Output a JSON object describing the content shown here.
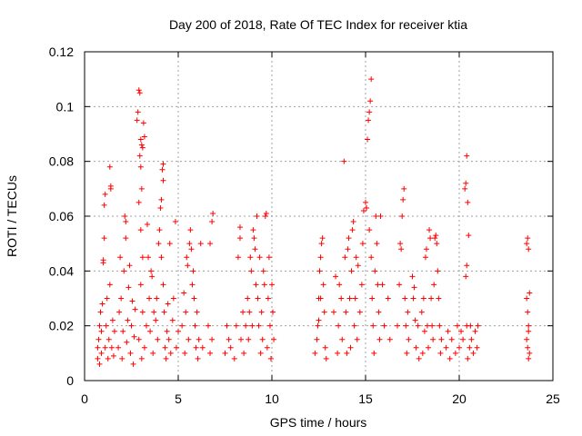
{
  "chart_data": {
    "type": "scatter",
    "title": "Day 200 of 2018, Rate Of TEC Index for receiver ktia",
    "xlabel": "GPS time / hours",
    "ylabel": "ROTI / TECUs",
    "xlim": [
      0,
      25
    ],
    "ylim": [
      0,
      0.12
    ],
    "grid": true,
    "marker": "plus",
    "color": "#ff0000",
    "x_ticks": [
      "0",
      "5",
      "10",
      "15",
      "20",
      "25"
    ],
    "x_tick_values": [
      0,
      5,
      10,
      15,
      20,
      25
    ],
    "y_ticks": [
      "0",
      "0.02",
      "0.04",
      "0.06",
      "0.08",
      "0.1",
      "0.12"
    ],
    "y_tick_values": [
      0,
      0.02,
      0.04,
      0.06,
      0.08,
      0.1,
      0.12
    ],
    "series": [
      {
        "name": "ROTI",
        "points": [
          [
            0.7,
            0.008
          ],
          [
            0.7,
            0.012
          ],
          [
            0.75,
            0.015
          ],
          [
            0.8,
            0.02
          ],
          [
            0.8,
            0.006
          ],
          [
            0.85,
            0.025
          ],
          [
            0.9,
            0.01
          ],
          [
            0.9,
            0.018
          ],
          [
            0.95,
            0.028
          ],
          [
            1.0,
            0.044
          ],
          [
            1.0,
            0.043
          ],
          [
            1.05,
            0.052
          ],
          [
            1.05,
            0.064
          ],
          [
            1.1,
            0.068
          ],
          [
            1.1,
            0.012
          ],
          [
            1.15,
            0.02
          ],
          [
            1.2,
            0.03
          ],
          [
            1.25,
            0.008
          ],
          [
            1.3,
            0.015
          ],
          [
            1.35,
            0.035
          ],
          [
            1.4,
            0.07
          ],
          [
            1.4,
            0.071
          ],
          [
            1.35,
            0.078
          ],
          [
            1.45,
            0.012
          ],
          [
            1.5,
            0.022
          ],
          [
            1.55,
            0.009
          ],
          [
            1.6,
            0.018
          ],
          [
            1.8,
            0.012
          ],
          [
            1.85,
            0.025
          ],
          [
            1.9,
            0.045
          ],
          [
            1.95,
            0.03
          ],
          [
            2.0,
            0.008
          ],
          [
            2.05,
            0.018
          ],
          [
            2.1,
            0.04
          ],
          [
            2.15,
            0.06
          ],
          [
            2.2,
            0.058
          ],
          [
            2.2,
            0.052
          ],
          [
            2.25,
            0.014
          ],
          [
            2.3,
            0.022
          ],
          [
            2.35,
            0.034
          ],
          [
            2.4,
            0.042
          ],
          [
            2.45,
            0.01
          ],
          [
            2.5,
            0.02
          ],
          [
            2.55,
            0.029
          ],
          [
            2.6,
            0.006
          ],
          [
            2.65,
            0.016
          ],
          [
            2.7,
            0.026
          ],
          [
            2.8,
            0.095
          ],
          [
            2.85,
            0.098
          ],
          [
            2.9,
            0.106
          ],
          [
            2.95,
            0.105
          ],
          [
            3.0,
            0.088
          ],
          [
            3.05,
            0.086
          ],
          [
            3.1,
            0.085
          ],
          [
            3.15,
            0.094
          ],
          [
            3.2,
            0.089
          ],
          [
            2.95,
            0.082
          ],
          [
            3.0,
            0.078
          ],
          [
            3.05,
            0.07
          ],
          [
            2.9,
            0.065
          ],
          [
            3.0,
            0.055
          ],
          [
            3.1,
            0.045
          ],
          [
            3.0,
            0.035
          ],
          [
            3.1,
            0.025
          ],
          [
            2.9,
            0.015
          ],
          [
            3.05,
            0.008
          ],
          [
            3.2,
            0.012
          ],
          [
            3.3,
            0.02
          ],
          [
            3.35,
            0.057
          ],
          [
            3.4,
            0.045
          ],
          [
            3.45,
            0.03
          ],
          [
            3.5,
            0.018
          ],
          [
            3.55,
            0.04
          ],
          [
            3.6,
            0.038
          ],
          [
            3.65,
            0.01
          ],
          [
            3.7,
            0.025
          ],
          [
            3.8,
            0.022
          ],
          [
            3.85,
            0.03
          ],
          [
            3.9,
            0.015
          ],
          [
            3.95,
            0.05
          ],
          [
            4.0,
            0.055
          ],
          [
            4.05,
            0.063
          ],
          [
            4.1,
            0.066
          ],
          [
            4.15,
            0.077
          ],
          [
            4.2,
            0.079
          ],
          [
            4.2,
            0.073
          ],
          [
            4.1,
            0.045
          ],
          [
            4.2,
            0.035
          ],
          [
            4.25,
            0.025
          ],
          [
            4.3,
            0.012
          ],
          [
            4.35,
            0.008
          ],
          [
            4.4,
            0.018
          ],
          [
            4.45,
            0.028
          ],
          [
            4.5,
            0.015
          ],
          [
            4.55,
            0.05
          ],
          [
            4.6,
            0.01
          ],
          [
            4.7,
            0.022
          ],
          [
            4.75,
            0.03
          ],
          [
            4.85,
            0.058
          ],
          [
            4.9,
            0.012
          ],
          [
            5.0,
            0.018
          ],
          [
            5.2,
            0.02
          ],
          [
            5.3,
            0.032
          ],
          [
            5.35,
            0.01
          ],
          [
            5.4,
            0.025
          ],
          [
            5.45,
            0.045
          ],
          [
            5.5,
            0.042
          ],
          [
            5.55,
            0.015
          ],
          [
            5.6,
            0.05
          ],
          [
            5.65,
            0.055
          ],
          [
            5.7,
            0.048
          ],
          [
            5.75,
            0.035
          ],
          [
            5.8,
            0.04
          ],
          [
            5.85,
            0.03
          ],
          [
            5.9,
            0.02
          ],
          [
            5.95,
            0.012
          ],
          [
            6.0,
            0.025
          ],
          [
            6.05,
            0.008
          ],
          [
            6.1,
            0.015
          ],
          [
            6.2,
            0.05
          ],
          [
            6.3,
            0.012
          ],
          [
            6.6,
            0.02
          ],
          [
            6.7,
            0.05
          ],
          [
            6.8,
            0.058
          ],
          [
            6.85,
            0.061
          ],
          [
            6.7,
            0.01
          ],
          [
            6.8,
            0.015
          ],
          [
            7.5,
            0.01
          ],
          [
            7.6,
            0.02
          ],
          [
            7.7,
            0.015
          ],
          [
            7.8,
            0.012
          ],
          [
            8.0,
            0.008
          ],
          [
            8.1,
            0.02
          ],
          [
            8.2,
            0.045
          ],
          [
            8.3,
            0.052
          ],
          [
            8.3,
            0.056
          ],
          [
            8.35,
            0.015
          ],
          [
            8.45,
            0.025
          ],
          [
            8.5,
            0.01
          ],
          [
            8.6,
            0.02
          ],
          [
            8.7,
            0.03
          ],
          [
            8.75,
            0.015
          ],
          [
            8.8,
            0.025
          ],
          [
            8.85,
            0.045
          ],
          [
            8.9,
            0.04
          ],
          [
            8.95,
            0.02
          ],
          [
            9.0,
            0.055
          ],
          [
            9.05,
            0.052
          ],
          [
            9.1,
            0.048
          ],
          [
            9.15,
            0.035
          ],
          [
            9.2,
            0.06
          ],
          [
            9.25,
            0.03
          ],
          [
            9.3,
            0.02
          ],
          [
            9.35,
            0.045
          ],
          [
            9.4,
            0.01
          ],
          [
            9.45,
            0.025
          ],
          [
            9.5,
            0.015
          ],
          [
            9.55,
            0.04
          ],
          [
            9.6,
            0.035
          ],
          [
            9.65,
            0.06
          ],
          [
            9.7,
            0.061
          ],
          [
            9.75,
            0.012
          ],
          [
            9.8,
            0.03
          ],
          [
            9.85,
            0.045
          ],
          [
            9.9,
            0.02
          ],
          [
            9.95,
            0.008
          ],
          [
            10.0,
            0.035
          ],
          [
            10.05,
            0.025
          ],
          [
            10.1,
            0.015
          ],
          [
            12.3,
            0.01
          ],
          [
            12.4,
            0.015
          ],
          [
            12.45,
            0.02
          ],
          [
            12.5,
            0.03
          ],
          [
            12.55,
            0.04
          ],
          [
            12.6,
            0.045
          ],
          [
            12.65,
            0.05
          ],
          [
            12.7,
            0.052
          ],
          [
            12.75,
            0.035
          ],
          [
            12.8,
            0.025
          ],
          [
            12.85,
            0.012
          ],
          [
            12.9,
            0.008
          ],
          [
            12.5,
            0.022
          ],
          [
            12.6,
            0.03
          ],
          [
            13.3,
            0.025
          ],
          [
            13.4,
            0.038
          ],
          [
            13.5,
            0.01
          ],
          [
            13.55,
            0.02
          ],
          [
            13.6,
            0.035
          ],
          [
            13.7,
            0.03
          ],
          [
            13.75,
            0.015
          ],
          [
            13.85,
            0.08
          ],
          [
            13.9,
            0.045
          ],
          [
            13.95,
            0.025
          ],
          [
            14.0,
            0.01
          ],
          [
            14.05,
            0.048
          ],
          [
            14.1,
            0.052
          ],
          [
            14.15,
            0.03
          ],
          [
            14.2,
            0.012
          ],
          [
            14.25,
            0.04
          ],
          [
            14.3,
            0.055
          ],
          [
            14.35,
            0.058
          ],
          [
            14.4,
            0.02
          ],
          [
            14.45,
            0.03
          ],
          [
            14.5,
            0.045
          ],
          [
            14.55,
            0.015
          ],
          [
            14.6,
            0.042
          ],
          [
            14.7,
            0.025
          ],
          [
            14.8,
            0.035
          ],
          [
            14.85,
            0.05
          ],
          [
            14.9,
            0.062
          ],
          [
            15.0,
            0.065
          ],
          [
            15.05,
            0.063
          ],
          [
            15.1,
            0.088
          ],
          [
            15.15,
            0.095
          ],
          [
            15.2,
            0.098
          ],
          [
            15.25,
            0.102
          ],
          [
            15.3,
            0.11
          ],
          [
            15.2,
            0.055
          ],
          [
            15.3,
            0.045
          ],
          [
            15.35,
            0.03
          ],
          [
            15.4,
            0.02
          ],
          [
            15.45,
            0.01
          ],
          [
            15.5,
            0.04
          ],
          [
            15.55,
            0.06
          ],
          [
            15.6,
            0.05
          ],
          [
            15.65,
            0.035
          ],
          [
            15.7,
            0.025
          ],
          [
            15.75,
            0.015
          ],
          [
            15.8,
            0.06
          ],
          [
            15.9,
            0.035
          ],
          [
            16.0,
            0.02
          ],
          [
            16.2,
            0.03
          ],
          [
            16.3,
            0.015
          ],
          [
            16.7,
            0.02
          ],
          [
            16.8,
            0.035
          ],
          [
            16.85,
            0.05
          ],
          [
            16.9,
            0.048
          ],
          [
            16.95,
            0.06
          ],
          [
            17.0,
            0.066
          ],
          [
            17.05,
            0.07
          ],
          [
            17.1,
            0.03
          ],
          [
            17.15,
            0.02
          ],
          [
            17.2,
            0.01
          ],
          [
            17.25,
            0.025
          ],
          [
            17.3,
            0.015
          ],
          [
            17.5,
            0.038
          ],
          [
            17.55,
            0.03
          ],
          [
            17.6,
            0.034
          ],
          [
            17.65,
            0.022
          ],
          [
            17.7,
            0.012
          ],
          [
            17.8,
            0.02
          ],
          [
            17.85,
            0.008
          ],
          [
            18.0,
            0.025
          ],
          [
            18.05,
            0.01
          ],
          [
            18.1,
            0.03
          ],
          [
            18.15,
            0.018
          ],
          [
            18.2,
            0.045
          ],
          [
            18.25,
            0.048
          ],
          [
            18.3,
            0.02
          ],
          [
            18.35,
            0.012
          ],
          [
            18.4,
            0.055
          ],
          [
            18.45,
            0.052
          ],
          [
            18.5,
            0.03
          ],
          [
            18.55,
            0.02
          ],
          [
            18.6,
            0.015
          ],
          [
            18.65,
            0.035
          ],
          [
            18.7,
            0.052
          ],
          [
            18.75,
            0.053
          ],
          [
            18.8,
            0.05
          ],
          [
            18.85,
            0.04
          ],
          [
            18.9,
            0.03
          ],
          [
            18.95,
            0.02
          ],
          [
            19.0,
            0.01
          ],
          [
            19.05,
            0.015
          ],
          [
            19.3,
            0.012
          ],
          [
            19.4,
            0.018
          ],
          [
            19.5,
            0.008
          ],
          [
            19.6,
            0.015
          ],
          [
            19.8,
            0.01
          ],
          [
            19.9,
            0.02
          ],
          [
            20.0,
            0.012
          ],
          [
            20.1,
            0.018
          ],
          [
            20.2,
            0.015
          ],
          [
            20.3,
            0.07
          ],
          [
            20.35,
            0.072
          ],
          [
            20.4,
            0.082
          ],
          [
            20.45,
            0.065
          ],
          [
            20.5,
            0.053
          ],
          [
            20.4,
            0.042
          ],
          [
            20.35,
            0.038
          ],
          [
            20.4,
            0.02
          ],
          [
            20.45,
            0.008
          ],
          [
            20.55,
            0.012
          ],
          [
            20.6,
            0.02
          ],
          [
            20.65,
            0.015
          ],
          [
            20.75,
            0.01
          ],
          [
            20.85,
            0.018
          ],
          [
            20.95,
            0.012
          ],
          [
            21.0,
            0.02
          ],
          [
            23.6,
            0.05
          ],
          [
            23.65,
            0.052
          ],
          [
            23.7,
            0.048
          ],
          [
            23.6,
            0.03
          ],
          [
            23.65,
            0.025
          ],
          [
            23.7,
            0.02
          ],
          [
            23.6,
            0.015
          ],
          [
            23.65,
            0.012
          ],
          [
            23.7,
            0.008
          ],
          [
            23.75,
            0.01
          ],
          [
            23.7,
            0.018
          ],
          [
            23.75,
            0.032
          ]
        ]
      }
    ]
  }
}
